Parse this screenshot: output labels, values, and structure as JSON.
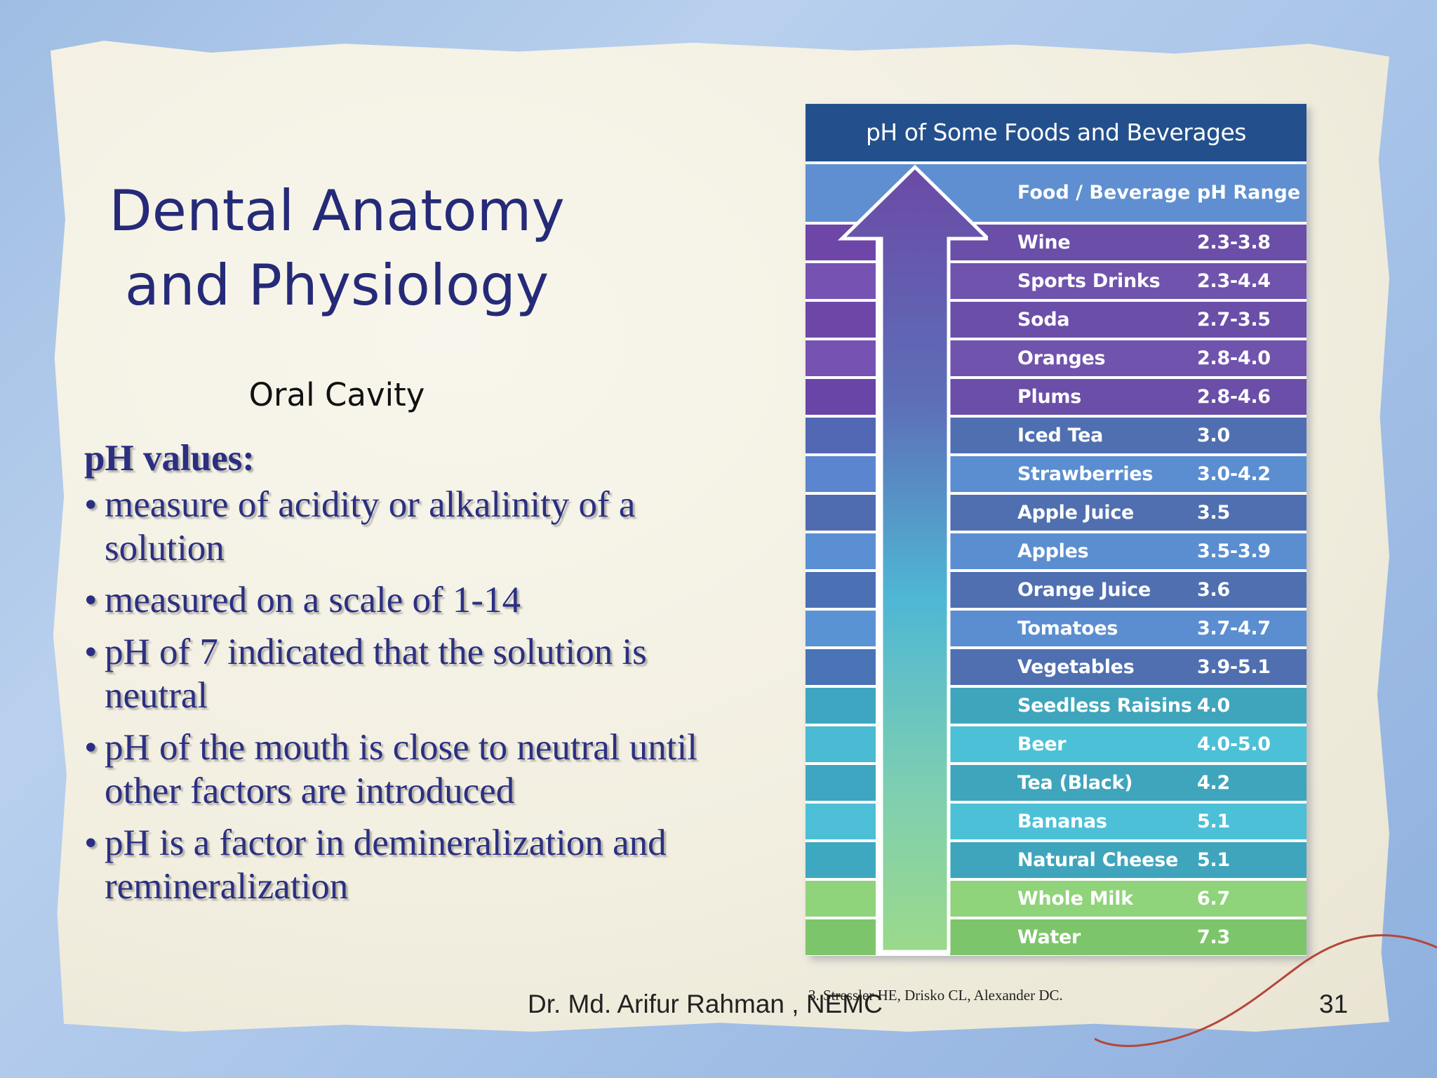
{
  "slide": {
    "title": "Dental Anatomy\nand Physiology",
    "subtitle": "Oral Cavity",
    "bullets_heading": "pH values:",
    "bullets": [
      "measure of acidity or alkalinity of a solution",
      "measured on a scale of 1-14",
      "pH of 7 indicated that the solution is neutral",
      "pH of the mouth is close to neutral until other factors are introduced",
      "pH is a factor in demineralization and remineralization"
    ],
    "bullet_glyph": "•",
    "footer": "Dr. Md. Arifur Rahman , NEMC",
    "citation": "3. Stressler HE, Drisko CL, Alexander DC.",
    "page_number": "31"
  },
  "table": {
    "title": "pH of Some Foods and Beverages",
    "col_food": "Food / Beverage",
    "col_ph": "pH Range",
    "rows": [
      {
        "name": "Wine",
        "ph": "2.3-3.8",
        "color": "#6a4ea8",
        "left": "#6e46a8"
      },
      {
        "name": "Sports Drinks",
        "ph": "2.3-4.4",
        "color": "#7053ad",
        "left": "#7652b3"
      },
      {
        "name": "Soda",
        "ph": "2.7-3.5",
        "color": "#6a4ea8",
        "left": "#6e46a8"
      },
      {
        "name": "Oranges",
        "ph": "2.8-4.0",
        "color": "#7053ad",
        "left": "#7652b3"
      },
      {
        "name": "Plums",
        "ph": "2.8-4.6",
        "color": "#6a4ea8",
        "left": "#6a45a8"
      },
      {
        "name": "Iced Tea",
        "ph": "3.0",
        "color": "#4f6fb0",
        "left": "#5268b4"
      },
      {
        "name": "Strawberries",
        "ph": "3.0-4.2",
        "color": "#5b8ed0",
        "left": "#5b85cf"
      },
      {
        "name": "Apple Juice",
        "ph": "3.5",
        "color": "#4f6fb0",
        "left": "#4f6cb0"
      },
      {
        "name": "Apples",
        "ph": "3.5-3.9",
        "color": "#5b8ed0",
        "left": "#5b8fd3"
      },
      {
        "name": "Orange Juice",
        "ph": "3.6",
        "color": "#4f6fb0",
        "left": "#4c70b4"
      },
      {
        "name": "Tomatoes",
        "ph": "3.7-4.7",
        "color": "#5b8ed0",
        "left": "#5a93d4"
      },
      {
        "name": "Vegetables",
        "ph": "3.9-5.1",
        "color": "#4f6fb0",
        "left": "#4a74b6"
      },
      {
        "name": "Seedless Raisins",
        "ph": "4.0",
        "color": "#3fa5bc",
        "left": "#3ea6c0"
      },
      {
        "name": "Beer",
        "ph": "4.0-5.0",
        "color": "#4cc0d6",
        "left": "#4bbad3"
      },
      {
        "name": "Tea (Black)",
        "ph": "4.2",
        "color": "#3fa5bc",
        "left": "#3ea6c0"
      },
      {
        "name": "Bananas",
        "ph": "5.1",
        "color": "#4cc0d6",
        "left": "#4cbfd6"
      },
      {
        "name": "Natural Cheese",
        "ph": "5.1",
        "color": "#3fa5bc",
        "left": "#3ea8c0"
      },
      {
        "name": "Whole Milk",
        "ph": "6.7",
        "color": "#8fd37a",
        "left": "#8fd37a"
      },
      {
        "name": "Water",
        "ph": "7.3",
        "color": "#7dc56a",
        "left": "#7dc56a"
      }
    ]
  }
}
